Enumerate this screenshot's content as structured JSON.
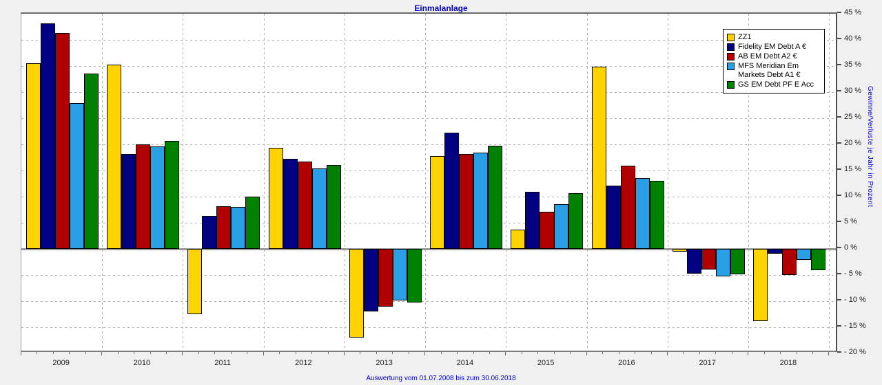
{
  "title": "Einmalanlage",
  "footer": "Auswertung vom 01.07.2008 bis zum 30.06.2018",
  "y_axis_title": "Gewinne/Verluste je Jahr in Prozent",
  "colors": {
    "title_text": "#0000cc",
    "plot_background": "#ffffff",
    "page_background": "#f0f0f0",
    "gridline": "#adadad",
    "zero_line": "#9a9a9a"
  },
  "chart_data": {
    "type": "bar",
    "title": "Einmalanlage",
    "categories": [
      "2009",
      "2010",
      "2011",
      "2012",
      "2013",
      "2014",
      "2015",
      "2016",
      "2017",
      "2018"
    ],
    "series": [
      {
        "name": "ZZ1",
        "color": "#ffd200",
        "values": [
          35.5,
          35.2,
          -12.5,
          19.4,
          -17.0,
          17.8,
          3.7,
          34.9,
          -0.5,
          -13.8
        ]
      },
      {
        "name": "Fidelity EM Debt A €",
        "color": "#000080",
        "values": [
          43.2,
          18.2,
          6.3,
          17.2,
          -12.0,
          22.3,
          10.9,
          12.1,
          -4.8,
          -0.9
        ]
      },
      {
        "name": "AB EM Debt A2 €",
        "color": "#b00000",
        "values": [
          41.3,
          20.0,
          8.1,
          16.7,
          -11.1,
          18.1,
          7.1,
          15.9,
          -3.9,
          -5.0
        ]
      },
      {
        "name": "MFS Meridian Em Markets Debt A1 €",
        "color": "#2b9fe6",
        "values": [
          27.9,
          19.6,
          8.0,
          15.4,
          -9.9,
          18.4,
          8.6,
          13.5,
          -5.3,
          -2.1
        ]
      },
      {
        "name": "GS EM Debt PF E Acc",
        "color": "#008000",
        "values": [
          33.6,
          20.7,
          10.0,
          16.1,
          -10.2,
          19.7,
          10.7,
          13.0,
          -4.9,
          -4.1
        ]
      }
    ],
    "xlabel": "",
    "ylabel": "Gewinne/Verluste je Jahr in Prozent",
    "ylim": [
      -20,
      45
    ],
    "ytick_step": 5,
    "ytick_labels": [
      "45 %",
      "40 %",
      "35 %",
      "30 %",
      "25 %",
      "20 %",
      "15 %",
      "10 %",
      "5 %",
      "0 %",
      "- 5 %",
      "- 10 %",
      "- 15 %",
      "- 20 %"
    ],
    "grid": true,
    "legend_position": "top-right"
  }
}
